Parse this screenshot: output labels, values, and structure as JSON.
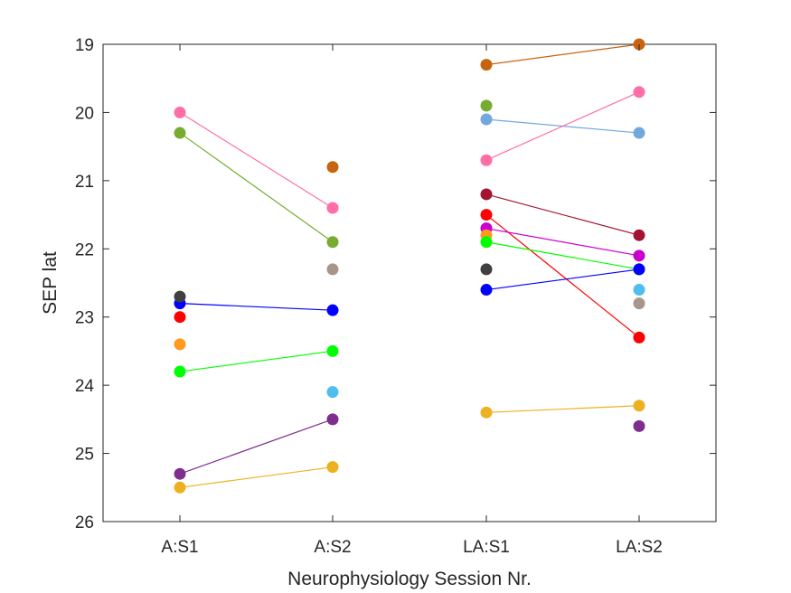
{
  "chart_data": {
    "type": "line",
    "title": "",
    "xlabel": "Neurophysiology Session Nr.",
    "ylabel": "SEP lat",
    "categories": [
      "A:S1",
      "A:S2",
      "LA:S1",
      "LA:S2"
    ],
    "ylim": [
      19,
      26
    ],
    "y_reversed": true,
    "yticks": [
      19,
      20,
      21,
      22,
      23,
      24,
      25,
      26
    ],
    "grid": false,
    "series": [
      {
        "color": "#ff6ea6",
        "points": [
          [
            "A:S1",
            20.0
          ],
          [
            "A:S2",
            21.4
          ]
        ]
      },
      {
        "color": "#77ac30",
        "points": [
          [
            "A:S1",
            20.3
          ],
          [
            "A:S2",
            21.9
          ]
        ]
      },
      {
        "color": "#0000ff",
        "points": [
          [
            "A:S1",
            22.8
          ],
          [
            "A:S2",
            22.9
          ]
        ]
      },
      {
        "color": "#00ff00",
        "points": [
          [
            "A:S1",
            23.8
          ],
          [
            "A:S2",
            23.5
          ]
        ]
      },
      {
        "color": "#7e2f8e",
        "points": [
          [
            "A:S1",
            25.3
          ],
          [
            "A:S2",
            24.5
          ]
        ]
      },
      {
        "color": "#edb120",
        "points": [
          [
            "A:S1",
            25.5
          ],
          [
            "A:S2",
            25.2
          ]
        ]
      },
      {
        "color": "#404040",
        "points": [
          [
            "A:S1",
            22.7
          ]
        ]
      },
      {
        "color": "#ff0000",
        "points": [
          [
            "A:S1",
            23.0
          ]
        ]
      },
      {
        "color": "#ff9a1f",
        "points": [
          [
            "A:S1",
            23.4
          ]
        ]
      },
      {
        "color": "#c8640f",
        "points": [
          [
            "A:S2",
            20.8
          ]
        ]
      },
      {
        "color": "#a8968a",
        "points": [
          [
            "A:S2",
            22.3
          ]
        ]
      },
      {
        "color": "#4dbeee",
        "points": [
          [
            "A:S2",
            24.1
          ]
        ]
      },
      {
        "color": "#c8640f",
        "points": [
          [
            "LA:S1",
            19.3
          ],
          [
            "LA:S2",
            19.0
          ]
        ]
      },
      {
        "color": "#77ac30",
        "points": [
          [
            "LA:S1",
            19.9
          ]
        ]
      },
      {
        "color": "#72a8dc",
        "points": [
          [
            "LA:S1",
            20.1
          ],
          [
            "LA:S2",
            20.3
          ]
        ]
      },
      {
        "color": "#ff6ea6",
        "points": [
          [
            "LA:S1",
            20.7
          ],
          [
            "LA:S2",
            19.7
          ]
        ]
      },
      {
        "color": "#a2142f",
        "points": [
          [
            "LA:S1",
            21.2
          ],
          [
            "LA:S2",
            21.8
          ]
        ]
      },
      {
        "color": "#ff0000",
        "points": [
          [
            "LA:S1",
            21.5
          ],
          [
            "LA:S2",
            23.3
          ]
        ]
      },
      {
        "color": "#3cb371",
        "points": [
          [
            "LA:S1",
            21.7
          ]
        ]
      },
      {
        "color": "#cc00cc",
        "points": [
          [
            "LA:S1",
            21.7
          ],
          [
            "LA:S2",
            22.1
          ]
        ]
      },
      {
        "color": "#ff9a1f",
        "points": [
          [
            "LA:S1",
            21.8
          ]
        ]
      },
      {
        "color": "#00ff00",
        "points": [
          [
            "LA:S1",
            21.9
          ],
          [
            "LA:S2",
            22.3
          ]
        ]
      },
      {
        "color": "#404040",
        "points": [
          [
            "LA:S1",
            22.3
          ]
        ]
      },
      {
        "color": "#0000ff",
        "points": [
          [
            "LA:S1",
            22.6
          ],
          [
            "LA:S2",
            22.3
          ]
        ]
      },
      {
        "color": "#edb120",
        "points": [
          [
            "LA:S1",
            24.4
          ],
          [
            "LA:S2",
            24.3
          ]
        ]
      },
      {
        "color": "#4dbeee",
        "points": [
          [
            "LA:S2",
            22.6
          ]
        ]
      },
      {
        "color": "#a8968a",
        "points": [
          [
            "LA:S2",
            22.8
          ]
        ]
      },
      {
        "color": "#7e2f8e",
        "points": [
          [
            "LA:S2",
            24.6
          ]
        ]
      }
    ]
  }
}
